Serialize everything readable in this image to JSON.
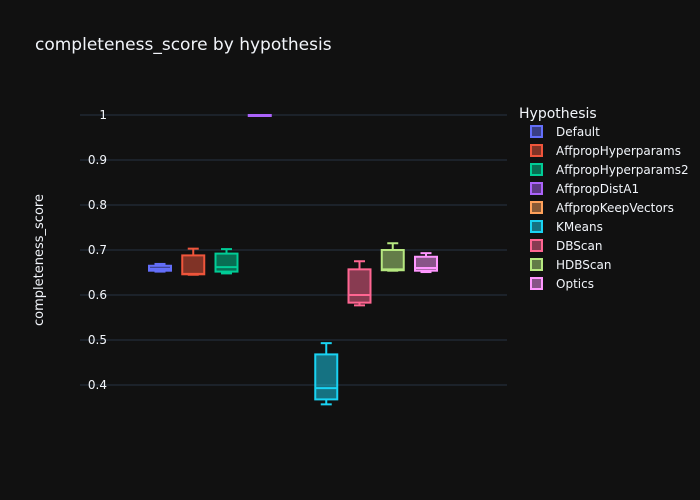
{
  "chart_data": {
    "type": "box",
    "title": "completeness_score by hypothesis",
    "xlabel": "",
    "ylabel": "completeness_score",
    "ylim": [
      0.3,
      1.08
    ],
    "yticks": [
      0.4,
      0.5,
      0.6,
      0.7,
      0.8,
      0.9,
      1
    ],
    "ytick_labels": [
      "0.4",
      "0.5",
      "0.6",
      "0.7",
      "0.8",
      "0.9",
      "1"
    ],
    "grid": true,
    "legend_title": "Hypothesis",
    "legend_position": "right",
    "series": [
      {
        "name": "Default",
        "color": "#636efa",
        "group": 0,
        "slot": 0,
        "min": 0.652,
        "q1": 0.654,
        "median": 0.658,
        "q3": 0.665,
        "max": 0.669
      },
      {
        "name": "AffpropHyperparams",
        "color": "#ef553b",
        "group": 0,
        "slot": 1,
        "min": 0.645,
        "q1": 0.646,
        "median": 0.647,
        "q3": 0.688,
        "max": 0.703
      },
      {
        "name": "AffpropHyperparams2",
        "color": "#00cc96",
        "group": 0,
        "slot": 2,
        "min": 0.648,
        "q1": 0.652,
        "median": 0.662,
        "q3": 0.692,
        "max": 0.702
      },
      {
        "name": "AffpropDistA1",
        "color": "#ab63fa",
        "group": 0,
        "slot": 3,
        "min": 1.0,
        "q1": 1.0,
        "median": 1.0,
        "q3": 1.0,
        "max": 1.0
      },
      {
        "name": "AffpropKeepVectors",
        "color": "#ffa15a",
        "group": 1,
        "slot": 0,
        "min": null,
        "q1": null,
        "median": null,
        "q3": null,
        "max": null
      },
      {
        "name": "KMeans",
        "color": "#19d3f3",
        "group": 1,
        "slot": 1,
        "min": 0.357,
        "q1": 0.368,
        "median": 0.393,
        "q3": 0.468,
        "max": 0.493
      },
      {
        "name": "DBScan",
        "color": "#ff6692",
        "group": 1,
        "slot": 2,
        "min": 0.577,
        "q1": 0.583,
        "median": 0.6,
        "q3": 0.657,
        "max": 0.675
      },
      {
        "name": "HDBScan",
        "color": "#b6e880",
        "group": 1,
        "slot": 3,
        "min": 0.654,
        "q1": 0.655,
        "median": 0.657,
        "q3": 0.7,
        "max": 0.715
      },
      {
        "name": "Optics",
        "color": "#ff97ff",
        "group": 1,
        "slot": 4,
        "min": 0.651,
        "q1": 0.654,
        "median": 0.66,
        "q3": 0.685,
        "max": 0.693
      }
    ]
  }
}
